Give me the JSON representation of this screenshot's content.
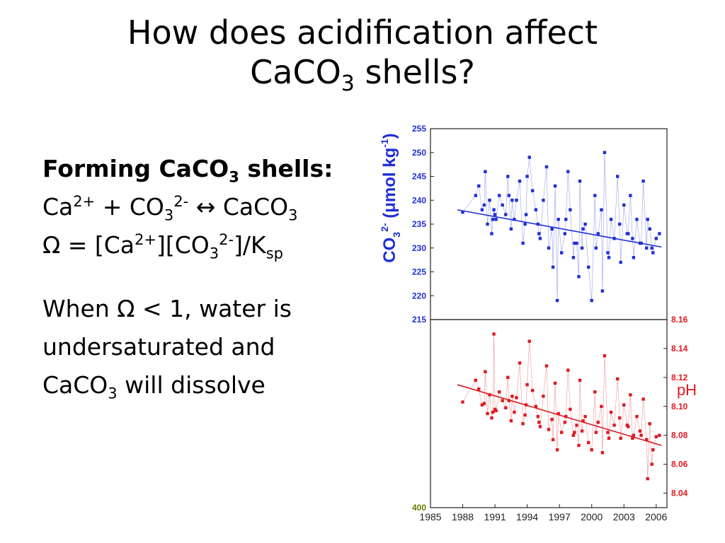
{
  "slide": {
    "title_line1": "How does acidification affect",
    "title_line2_pre": "CaCO",
    "title_line2_sub": "3",
    "title_line2_post": " shells?",
    "heading_pre": "Forming CaCO",
    "heading_sub": "3",
    "heading_post": " shells:",
    "eq1": {
      "a": "Ca",
      "a_sup": "2+",
      "b": " + CO",
      "b_sub": "3",
      "b_sup": "2-",
      "c": " ↔ CaCO",
      "c_sub": "3"
    },
    "eq2": {
      "a": "Ω = [Ca",
      "a_sup": "2+",
      "b": "][CO",
      "b_sub": "3",
      "b_sup": "2-",
      "c": "]/K",
      "c_sub": "sp"
    },
    "para_line1": "When Ω < 1, water is",
    "para_line2": "undersaturated and",
    "para_line3_pre": "CaCO",
    "para_line3_sub": "3",
    "para_line3_post": " will dissolve"
  },
  "chart_data": [
    {
      "type": "scatter",
      "ylabel": "CO3 2- (μmol kg-1)",
      "ylim": [
        215,
        255
      ],
      "yticks": [
        215,
        220,
        225,
        230,
        235,
        240,
        245,
        250,
        255
      ],
      "xlim": [
        1985,
        2007
      ],
      "color": "#1f2fd6",
      "trend": {
        "x": [
          1987.5,
          2006.5
        ],
        "y": [
          238.0,
          230.2
        ]
      },
      "points": {
        "x": [
          1988.0,
          1989.2,
          1989.5,
          1989.8,
          1990.1,
          1990.3,
          1990.5,
          1990.7,
          1990.9,
          1991.1,
          1991.4,
          1991.7,
          1992.0,
          1992.2,
          1992.5,
          1992.8,
          1993.0,
          1993.3,
          1993.6,
          1993.9,
          1994.2,
          1994.5,
          1994.8,
          1995.0,
          1995.2,
          1995.5,
          1995.8,
          1996.0,
          1996.3,
          1996.6,
          1996.9,
          1997.2,
          1997.5,
          1997.8,
          1998.0,
          1998.3,
          1998.6,
          1998.9,
          1999.1,
          1999.4,
          1999.7,
          2000.0,
          2000.3,
          2000.6,
          2000.9,
          2001.2,
          2001.5,
          2001.8,
          2002.1,
          2002.4,
          2002.7,
          2003.0,
          2003.3,
          2003.6,
          2003.9,
          2004.2,
          2004.5,
          2004.8,
          2005.1,
          2005.4,
          2005.7,
          2006.0,
          2006.3,
          1990.0,
          1991.0,
          1992.6,
          1993.8,
          1995.1,
          1996.4,
          1997.6,
          1998.4,
          1999.2,
          2000.4,
          2001.6,
          2002.6,
          2003.4,
          2004.6,
          2005.6,
          1990.8,
          1992.3,
          1994.0,
          1996.8,
          1998.8,
          2001.0,
          2003.8,
          2005.2
        ],
        "y": [
          237.5,
          241,
          243,
          238,
          246,
          235,
          240,
          233,
          238,
          236,
          241,
          239,
          237,
          245,
          234,
          236,
          240,
          244,
          231,
          237,
          249,
          242,
          238,
          235,
          232,
          240,
          247,
          230,
          234,
          243,
          236,
          229,
          233,
          246,
          238,
          228,
          231,
          244,
          230,
          235,
          226,
          219,
          241,
          233,
          238,
          250,
          229,
          236,
          232,
          245,
          227,
          239,
          233,
          241,
          228,
          236,
          231,
          244,
          230,
          234,
          229,
          232,
          233,
          239,
          237,
          240,
          235,
          233,
          226,
          236,
          231,
          234,
          230,
          228,
          235,
          233,
          231,
          230,
          236,
          241,
          245,
          219,
          224,
          221,
          232,
          236
        ],
        "note": ""
      }
    },
    {
      "type": "scatter",
      "ylabel": "pH",
      "ylim": [
        8.03,
        8.16
      ],
      "yticks": [
        8.04,
        8.06,
        8.08,
        8.1,
        8.12,
        8.14,
        8.16
      ],
      "xlim": [
        1985,
        2007
      ],
      "xticks": [
        1985,
        1988,
        1991,
        1994,
        1997,
        2000,
        2003,
        2006
      ],
      "left_ticks": [
        400
      ],
      "color": "#e0191e",
      "trend": {
        "x": [
          1987.5,
          2006.5
        ],
        "y": [
          8.115,
          8.073
        ]
      },
      "points": {
        "x": [
          1988.0,
          1989.2,
          1989.5,
          1989.8,
          1990.1,
          1990.3,
          1990.5,
          1990.7,
          1990.9,
          1991.1,
          1991.4,
          1991.7,
          1992.0,
          1992.2,
          1992.5,
          1992.8,
          1993.0,
          1993.3,
          1993.6,
          1993.9,
          1994.2,
          1994.5,
          1994.8,
          1995.0,
          1995.2,
          1995.5,
          1995.8,
          1996.0,
          1996.3,
          1996.6,
          1996.9,
          1997.2,
          1997.5,
          1997.8,
          1998.0,
          1998.3,
          1998.6,
          1998.9,
          1999.1,
          1999.4,
          1999.7,
          2000.0,
          2000.3,
          2000.6,
          2000.9,
          2001.2,
          2001.5,
          2001.8,
          2002.1,
          2002.4,
          2002.7,
          2003.0,
          2003.3,
          2003.6,
          2003.9,
          2004.2,
          2004.5,
          2004.8,
          2005.1,
          2005.4,
          2005.7,
          2006.0,
          2006.3,
          1990.0,
          1991.0,
          1992.6,
          1993.8,
          1995.1,
          1996.4,
          1997.6,
          1998.4,
          1999.2,
          2000.4,
          2001.6,
          2002.6,
          2003.4,
          2004.6,
          2005.6,
          1990.8,
          1992.3,
          1994.0,
          1996.8,
          1998.8,
          2001.0,
          2003.8,
          2005.2
        ],
        "y": [
          8.103,
          8.118,
          8.112,
          8.101,
          8.124,
          8.095,
          8.108,
          8.092,
          8.15,
          8.097,
          8.11,
          8.104,
          8.099,
          8.12,
          8.09,
          8.096,
          8.106,
          8.13,
          8.088,
          8.101,
          8.145,
          8.111,
          8.1,
          8.093,
          8.086,
          8.107,
          8.128,
          8.084,
          8.091,
          8.116,
          8.095,
          8.082,
          8.089,
          8.125,
          8.098,
          8.08,
          8.087,
          8.118,
          8.083,
          8.093,
          8.075,
          8.07,
          8.11,
          8.089,
          8.1,
          8.135,
          8.082,
          8.096,
          8.087,
          8.119,
          8.078,
          8.101,
          8.087,
          8.108,
          8.08,
          8.093,
          8.083,
          8.105,
          8.077,
          8.088,
          8.07,
          8.079,
          8.08,
          8.102,
          8.098,
          8.107,
          8.094,
          8.089,
          8.077,
          8.093,
          8.082,
          8.09,
          8.082,
          8.078,
          8.092,
          8.086,
          8.08,
          8.06,
          8.096,
          8.104,
          8.115,
          8.07,
          8.073,
          8.068,
          8.078,
          8.05
        ],
        "note": ""
      }
    }
  ]
}
